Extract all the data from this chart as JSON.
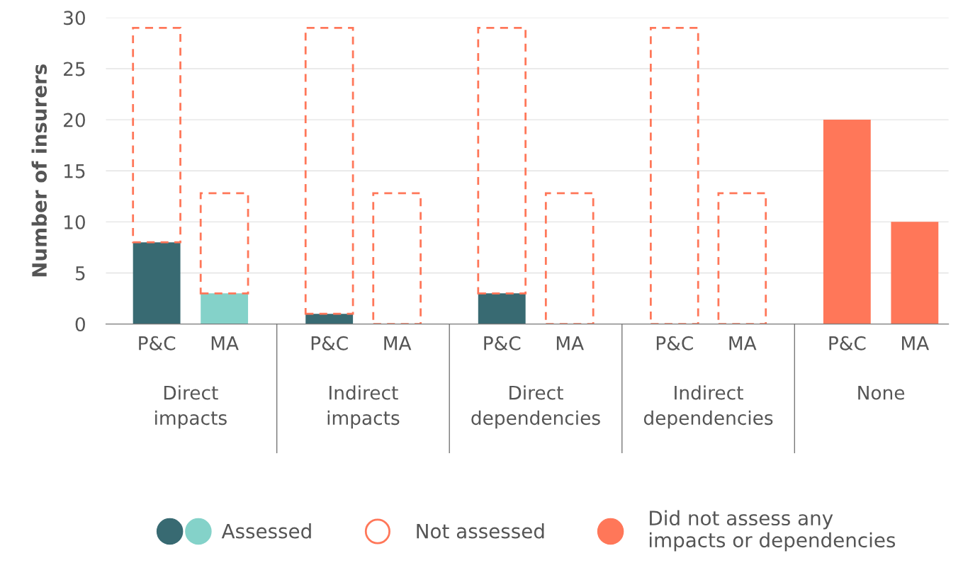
{
  "chart_data": {
    "type": "bar",
    "stacked": true,
    "ylabel": "Number of insurers",
    "categories": [
      "P&C",
      "MA",
      "P&C",
      "MA",
      "P&C",
      "MA",
      "P&C",
      "MA",
      "P&C",
      "MA"
    ],
    "annotations": [
      "Direct\nimpacts",
      "Indirect\nimpacts",
      "Direct\ndependencies",
      "Indirect\ndependencies",
      "None"
    ],
    "series": [
      {
        "name": "Assessed",
        "colors": [
          "#386a72",
          "#84d2c9",
          "#386a72",
          "#84d2c9",
          "#386a72",
          "#84d2c9",
          "#386a72",
          "#84d2c9",
          "#386a72",
          "#84d2c9"
        ],
        "values": [
          8,
          3,
          1,
          0,
          3,
          0,
          0,
          0,
          null,
          null
        ]
      },
      {
        "name": "Not assessed",
        "color": "#ff7759",
        "line_style": "dashed",
        "values": [
          21,
          9.8,
          28,
          12.8,
          26,
          12.8,
          29,
          12.8,
          null,
          null
        ]
      },
      {
        "name": "Did not assess any\nimpacts or dependencies",
        "color": "#ff7759",
        "values": [
          null,
          null,
          null,
          null,
          null,
          null,
          null,
          null,
          20,
          10
        ]
      }
    ],
    "ylim": [
      0,
      30
    ],
    "yticks": [
      0,
      5,
      10,
      15,
      20,
      25,
      30
    ],
    "grid": "y",
    "legend": "bottom"
  }
}
